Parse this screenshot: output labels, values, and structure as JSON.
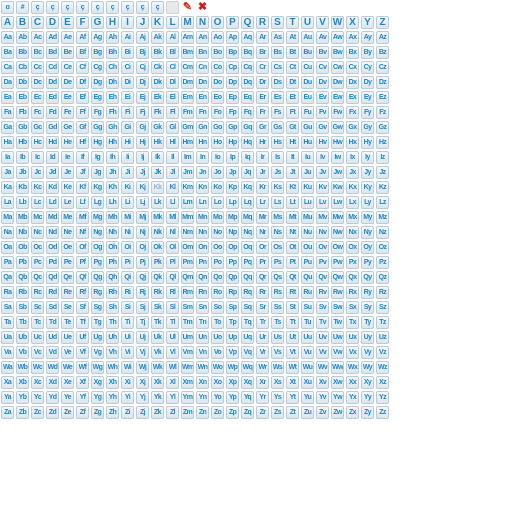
{
  "toolbar": {
    "scripts": [
      "ɑ",
      "#",
      "ç",
      "ç",
      "ç",
      "ç",
      "ç",
      "ç",
      "ç",
      "ç",
      "ç"
    ],
    "blank_tile": "",
    "pencil_icon": "pencil-icon",
    "delete_icon": "close-icon",
    "pencil_glyph": "✎",
    "delete_glyph": "✖"
  },
  "alphabet": [
    "A",
    "B",
    "C",
    "D",
    "E",
    "F",
    "G",
    "H",
    "I",
    "J",
    "K",
    "L",
    "M",
    "N",
    "O",
    "P",
    "Q",
    "R",
    "S",
    "T",
    "U",
    "V",
    "W",
    "X",
    "Y",
    "Z"
  ],
  "pending_tiles": [
    "Kk"
  ],
  "colors": {
    "tile_text": "#1c86c8",
    "tile_border": "#b9cad8",
    "pencil": "#d8331f",
    "cross": "#d41d1d"
  }
}
